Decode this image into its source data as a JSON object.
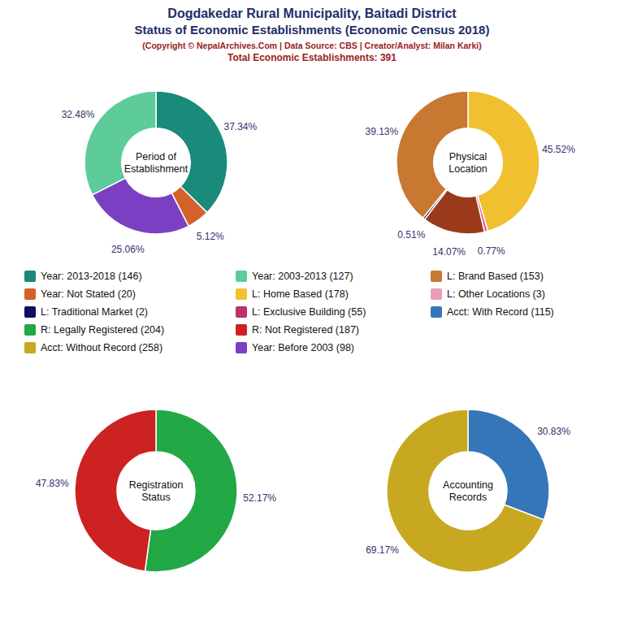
{
  "title": "Dogdakedar Rural Municipality, Baitadi District",
  "subtitle": "Status of Economic Establishments (Economic Census 2018)",
  "annotations": [
    "(Copyright © NepalArchives.Com | Data Source: CBS | Creator/Analyst: Milan Karki)",
    "Total Economic Establishments: 391"
  ],
  "series": [
    {
      "name": "Year: 2013-2018 (146)",
      "color": "#1a8a7a"
    },
    {
      "name": "Year: Not Stated (20)",
      "color": "#d2622a"
    },
    {
      "name": "L: Traditional Market (2)",
      "color": "#101060"
    },
    {
      "name": "R: Legally Registered (204)",
      "color": "#22a844"
    },
    {
      "name": "Acct: Without Record (258)",
      "color": "#c8a820"
    },
    {
      "name": "Year: 2003-2013 (127)",
      "color": "#5dcc9a"
    },
    {
      "name": "L: Home Based (178)",
      "color": "#f0c030"
    },
    {
      "name": "L: Exclusive Building (55)",
      "color": "#c0306a"
    },
    {
      "name": "R: Not Registered (187)",
      "color": "#cc2222"
    },
    {
      "name": "Year: Before 2003 (98)",
      "color": "#7b3fc4"
    },
    {
      "name": "L: Brand Based (153)",
      "color": "#c87830"
    },
    {
      "name": "L: Other Locations (3)",
      "color": "#e8a0b8"
    },
    {
      "name": "Acct: With Record (115)",
      "color": "#3476b8"
    }
  ],
  "chart_data": [
    {
      "type": "pie",
      "title": "Period of\nEstablishment",
      "values": [
        37.34,
        5.12,
        25.06,
        32.48
      ],
      "value_labels": [
        "37.34%",
        "5.12%",
        "25.06%",
        "32.48%"
      ],
      "colors": [
        "#1a8a7a",
        "#d2622a",
        "#7b3fc4",
        "#5dcc9a"
      ],
      "data_labels": true
    },
    {
      "type": "pie",
      "title": "Physical\nLocation",
      "values": [
        45.52,
        0.77,
        14.07,
        0.51,
        39.13
      ],
      "value_labels": [
        "45.52%",
        "0.77%",
        "14.07%",
        "0.51%",
        "39.13%"
      ],
      "colors": [
        "#f0c030",
        "#e060a0",
        "#9b3a1a",
        "#101060",
        "#c87830"
      ],
      "data_labels": true
    },
    {
      "type": "pie",
      "title": "Registration\nStatus",
      "values": [
        52.17,
        47.83
      ],
      "value_labels": [
        "52.17%",
        "47.83%"
      ],
      "colors": [
        "#22a844",
        "#cc2222"
      ],
      "data_labels": true
    },
    {
      "type": "pie",
      "title": "Accounting\nRecords",
      "values": [
        30.83,
        69.17
      ],
      "value_labels": [
        "30.83%",
        "69.17%"
      ],
      "colors": [
        "#3476b8",
        "#c8a820"
      ],
      "data_labels": true
    }
  ]
}
